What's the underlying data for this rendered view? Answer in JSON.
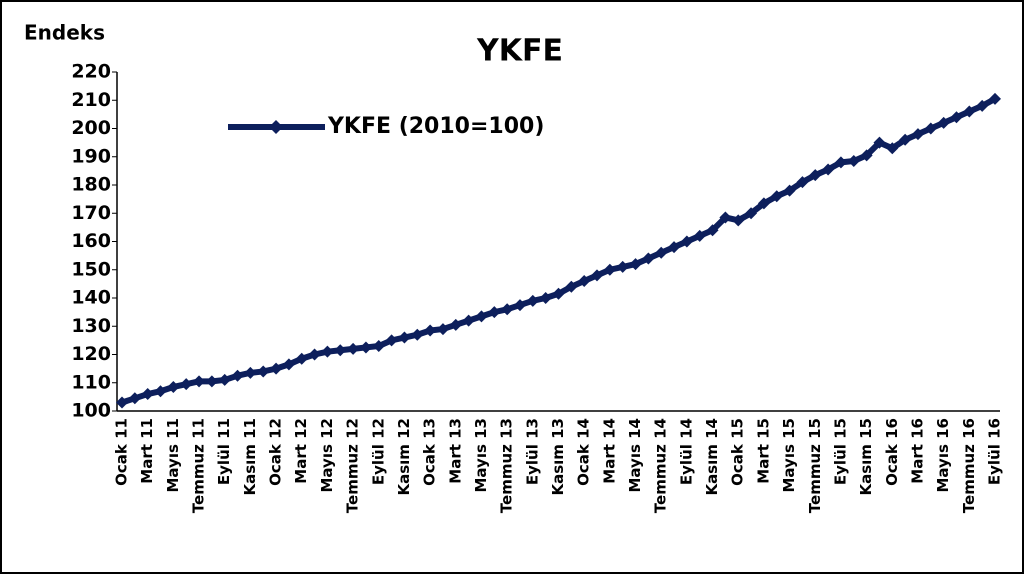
{
  "chart_data": {
    "type": "line",
    "title": "YKFE",
    "y_axis_label": "Endeks",
    "categories": [
      "Ocak 11",
      null,
      "Mart 11",
      null,
      "Mayıs 11",
      null,
      "Temmuz 11",
      null,
      "Eylül 11",
      null,
      "Kasım 11",
      null,
      "Ocak 12",
      null,
      "Mart 12",
      null,
      "Mayıs 12",
      null,
      "Temmuz 12",
      null,
      "Eylül 12",
      null,
      "Kasım 12",
      null,
      "Ocak 13",
      null,
      "Mart 13",
      null,
      "Mayıs 13",
      null,
      "Temmuz 13",
      null,
      "Eylül 13",
      null,
      "Kasım 13",
      null,
      "Ocak 14",
      null,
      "Mart 14",
      null,
      "Mayıs 14",
      null,
      "Temmuz 14",
      null,
      "Eylül 14",
      null,
      "Kasım 14",
      null,
      "Ocak 15",
      null,
      "Mart 15",
      null,
      "Mayıs 15",
      null,
      "Temmuz 15",
      null,
      "Eylül 15",
      null,
      "Kasım 15",
      null,
      "Ocak 16",
      null,
      "Mart 16",
      null,
      "Mayıs 16",
      null,
      "Temmuz 16",
      null,
      "Eylül 16"
    ],
    "series": [
      {
        "name": "YKFE (2010=100)",
        "color": "#0d1f5c",
        "values": [
          103,
          104.5,
          106,
          107,
          108.5,
          109.5,
          110.5,
          110.5,
          111,
          112.5,
          113.5,
          114,
          115,
          116.5,
          118.5,
          120,
          121,
          121.5,
          122,
          122.5,
          123,
          125,
          126,
          127,
          128.5,
          129,
          130.5,
          132,
          133.5,
          135,
          136,
          137.5,
          139,
          140,
          141.5,
          144,
          146,
          148,
          150,
          151,
          152,
          154,
          156,
          158,
          160,
          162,
          164,
          168.5,
          167.5,
          170,
          173.5,
          176,
          178,
          181,
          183.5,
          185.5,
          188,
          188.5,
          190.5,
          195,
          193,
          196,
          198,
          200,
          202,
          204,
          206,
          208,
          210.5
        ]
      }
    ],
    "ylim": [
      100,
      220
    ],
    "yticks": [
      100,
      110,
      120,
      130,
      140,
      150,
      160,
      170,
      180,
      190,
      200,
      210,
      220
    ],
    "grid": false,
    "legend": "upper left"
  }
}
